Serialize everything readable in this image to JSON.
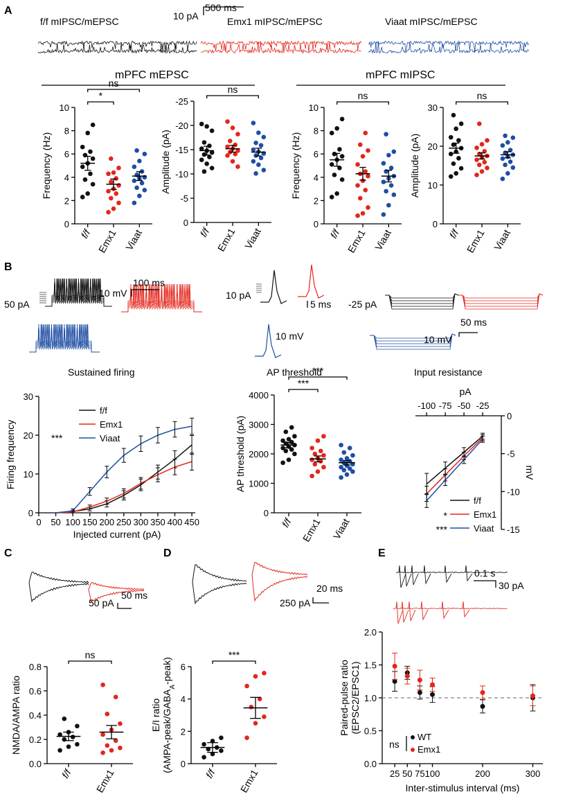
{
  "colors": {
    "ff": "#111111",
    "emx1": "#e3261c",
    "viaat": "#1f4ea3",
    "axis": "#000000"
  },
  "panel_letters": [
    "A",
    "B",
    "C",
    "D",
    "E"
  ],
  "panelA": {
    "trace_labels": [
      "f/f mIPSC/mEPSC",
      "Emx1 mIPSC/mEPSC",
      "Viaat mIPSC/mEPSC"
    ],
    "scale_x": "500 ms",
    "scale_y": "10 pA",
    "group_headers": [
      "mPFC mEPSC",
      "mPFC mIPSC"
    ]
  },
  "panelB": {
    "scale_firing_y": "10 mV",
    "scale_firing_x": "100 ms",
    "stim_firing": "50 pA",
    "scale_ap_y": "10 pA",
    "scale_ap_x": "5 ms",
    "scale_ap_mv": "10 mV",
    "stim_ir": "-25 pA",
    "scale_ir_y": "10 mV",
    "scale_ir_x": "50 ms",
    "titles": [
      "Sustained firing",
      "AP threshold",
      "Input resistance"
    ]
  },
  "panelC": {
    "scale_y": "50 pA",
    "scale_x": "50 ms"
  },
  "panelD": {
    "scale_y": "250 pA",
    "scale_x": "20 ms"
  },
  "panelE": {
    "scale_x": "0.1 s",
    "scale_y": "30 pA"
  },
  "chart_data": [
    {
      "id": "mepsc_freq",
      "type": "scatter",
      "ylabel": "Frequency (Hz)",
      "ylim": [
        0,
        10
      ],
      "yticks": [
        0,
        2,
        4,
        6,
        8,
        10
      ],
      "categories": [
        "f/f",
        "Emx1",
        "Viaat"
      ],
      "groups": [
        {
          "name": "f/f",
          "color": "#111111",
          "mean": 5.2,
          "sem": 0.6,
          "points": [
            8.5,
            7.8,
            6.6,
            6.2,
            5.9,
            5.6,
            5.2,
            4.9,
            4.3,
            3.8,
            3.4,
            2.6,
            2.3
          ]
        },
        {
          "name": "Emx1",
          "color": "#e3261c",
          "mean": 3.4,
          "sem": 0.45,
          "points": [
            5.6,
            4.8,
            4.4,
            4.3,
            3.9,
            3.6,
            3.3,
            3.0,
            2.8,
            2.6,
            2.2,
            1.8,
            1.3,
            1.0
          ]
        },
        {
          "name": "Viaat",
          "color": "#1f4ea3",
          "mean": 4.1,
          "sem": 0.38,
          "points": [
            6.3,
            6.0,
            5.4,
            4.9,
            4.5,
            4.2,
            4.0,
            3.9,
            3.7,
            3.5,
            3.1,
            2.9,
            2.4,
            1.8
          ]
        }
      ],
      "sig": [
        {
          "from": 0,
          "to": 1,
          "label": "*"
        },
        {
          "from": 0,
          "to": 2,
          "label": "ns"
        }
      ]
    },
    {
      "id": "mepsc_amp",
      "type": "scatter",
      "ylabel": "Amplitude (pA)",
      "ylim": [
        0,
        -25
      ],
      "yticks": [
        0,
        -5,
        -10,
        -15,
        -20,
        -25
      ],
      "categories": [
        "f/f",
        "Emx1",
        "Viaat"
      ],
      "groups": [
        {
          "name": "f/f",
          "color": "#111111",
          "mean": -14.8,
          "sem": 0.9,
          "points": [
            -20.3,
            -19.8,
            -18.9,
            -16.5,
            -15.8,
            -15.2,
            -14.8,
            -14.4,
            -14.0,
            -13.5,
            -12.9,
            -12.1,
            -11.2,
            -10.5
          ]
        },
        {
          "name": "Emx1",
          "color": "#e3261c",
          "mean": -15.2,
          "sem": 0.7,
          "points": [
            -20.8,
            -19.5,
            -18.2,
            -16.8,
            -16.0,
            -15.6,
            -15.2,
            -14.8,
            -14.5,
            -14.1,
            -13.8,
            -12.6,
            -11.5
          ]
        },
        {
          "name": "Viaat",
          "color": "#1f4ea3",
          "mean": -14.5,
          "sem": 0.8,
          "points": [
            -20.5,
            -18.5,
            -17.6,
            -16.4,
            -15.9,
            -15.0,
            -14.6,
            -14.2,
            -13.8,
            -13.3,
            -12.6,
            -11.9,
            -10.8,
            -10.1
          ]
        }
      ],
      "sig": [
        {
          "from": 0,
          "to": 2,
          "label": "ns"
        }
      ]
    },
    {
      "id": "mipsc_freq",
      "type": "scatter",
      "ylabel": "Frequency (Hz)",
      "ylim": [
        0,
        10
      ],
      "yticks": [
        0,
        2,
        4,
        6,
        8,
        10
      ],
      "categories": [
        "f/f",
        "Emx1",
        "Viaat"
      ],
      "groups": [
        {
          "name": "f/f",
          "color": "#111111",
          "mean": 5.5,
          "sem": 0.55,
          "points": [
            9.0,
            8.2,
            7.8,
            6.4,
            6.0,
            5.8,
            5.5,
            5.1,
            4.8,
            4.2,
            3.8,
            2.6,
            2.3
          ]
        },
        {
          "name": "Emx1",
          "color": "#e3261c",
          "mean": 4.3,
          "sem": 0.55,
          "points": [
            7.8,
            6.8,
            6.3,
            5.8,
            5.1,
            4.5,
            4.3,
            4.1,
            3.7,
            3.3,
            2.9,
            2.2,
            1.4,
            0.9,
            0.7
          ]
        },
        {
          "name": "Viaat",
          "color": "#1f4ea3",
          "mean": 4.1,
          "sem": 0.5,
          "points": [
            7.7,
            6.2,
            5.9,
            5.2,
            4.8,
            4.5,
            4.1,
            3.9,
            3.6,
            3.3,
            2.8,
            2.5,
            1.6,
            0.8
          ]
        }
      ],
      "sig": [
        {
          "from": 0,
          "to": 2,
          "label": "ns"
        }
      ]
    },
    {
      "id": "mipsc_amp",
      "type": "scatter",
      "ylabel": "Amplitude (pA)",
      "ylim": [
        0,
        30
      ],
      "yticks": [
        0,
        10,
        20,
        30
      ],
      "categories": [
        "f/f",
        "Emx1",
        "Viaat"
      ],
      "groups": [
        {
          "name": "f/f",
          "color": "#111111",
          "mean": 19.5,
          "sem": 1.3,
          "points": [
            28.0,
            25.8,
            24.5,
            22.3,
            21.5,
            20.4,
            19.5,
            18.6,
            18.0,
            16.9,
            15.5,
            14.3,
            13.0,
            12.2
          ]
        },
        {
          "name": "Emx1",
          "color": "#e3261c",
          "mean": 17.5,
          "sem": 0.8,
          "points": [
            25.8,
            21.5,
            20.5,
            19.6,
            18.7,
            18.0,
            17.5,
            17.1,
            16.5,
            15.9,
            15.2,
            14.4,
            13.5,
            12.6
          ]
        },
        {
          "name": "Viaat",
          "color": "#1f4ea3",
          "mean": 17.8,
          "sem": 0.8,
          "points": [
            22.7,
            22.2,
            21.0,
            20.2,
            19.0,
            18.3,
            17.8,
            17.3,
            16.8,
            16.0,
            15.2,
            14.5,
            13.0,
            11.6
          ]
        }
      ],
      "sig": [
        {
          "from": 0,
          "to": 2,
          "label": "ns"
        }
      ]
    },
    {
      "id": "sustained_firing",
      "type": "line",
      "xlabel": "Injected current (pA)",
      "ylabel": "Firing frequency",
      "xlim": [
        0,
        460
      ],
      "ylim": [
        0,
        30
      ],
      "xticks": [
        0,
        50,
        100,
        150,
        200,
        250,
        300,
        350,
        400,
        450
      ],
      "yticks": [
        0,
        10,
        20,
        30
      ],
      "annotation": "***",
      "series": [
        {
          "name": "f/f",
          "color": "#111111",
          "x": [
            100,
            150,
            200,
            250,
            300,
            350,
            400,
            450
          ],
          "y": [
            0.3,
            1.0,
            2.3,
            4.5,
            7.2,
            10.5,
            13.8,
            17.5
          ],
          "err": [
            0.3,
            0.5,
            0.8,
            1.2,
            1.5,
            1.8,
            2.2,
            2.4
          ]
        },
        {
          "name": "Emx1",
          "color": "#e3261c",
          "x": [
            100,
            150,
            200,
            250,
            300,
            350,
            400,
            450
          ],
          "y": [
            0.2,
            1.5,
            3.0,
            5.0,
            7.6,
            9.8,
            11.8,
            13.2
          ],
          "err": [
            0.2,
            0.5,
            0.8,
            1.2,
            1.5,
            1.8,
            2.0,
            2.2
          ]
        },
        {
          "name": "Viaat",
          "color": "#1f4ea3",
          "x": [
            100,
            150,
            200,
            250,
            300,
            350,
            400,
            450
          ],
          "y": [
            0.5,
            5.5,
            10.5,
            14.8,
            17.8,
            20.0,
            21.5,
            22.3
          ],
          "err": [
            0.5,
            1.0,
            1.5,
            1.8,
            2.0,
            2.0,
            2.0,
            2.1
          ]
        }
      ]
    },
    {
      "id": "ap_threshold",
      "type": "scatter",
      "ylabel": "AP threshold (pA)",
      "ylim": [
        0,
        4000
      ],
      "yticks": [
        0,
        1000,
        2000,
        3000,
        4000
      ],
      "categories": [
        "f/f",
        "Emx1",
        "Viaat"
      ],
      "groups": [
        {
          "name": "f/f",
          "color": "#111111",
          "mean": 2300,
          "sem": 90,
          "points": [
            2900,
            2750,
            2600,
            2500,
            2450,
            2400,
            2350,
            2300,
            2250,
            2200,
            2150,
            2100,
            2000,
            1800,
            1700
          ]
        },
        {
          "name": "Emx1",
          "color": "#e3261c",
          "mean": 1830,
          "sem": 100,
          "points": [
            2600,
            2450,
            2200,
            2100,
            2000,
            1950,
            1850,
            1800,
            1750,
            1650,
            1550,
            1400,
            1250
          ]
        },
        {
          "name": "Viaat",
          "color": "#1f4ea3",
          "mean": 1700,
          "sem": 75,
          "points": [
            2300,
            2200,
            2050,
            1950,
            1850,
            1800,
            1750,
            1700,
            1650,
            1600,
            1550,
            1500,
            1450,
            1400,
            1300,
            1200
          ]
        }
      ],
      "sig": [
        {
          "from": 0,
          "to": 1,
          "label": "***"
        },
        {
          "from": 0,
          "to": 2,
          "label": "***"
        }
      ]
    },
    {
      "id": "input_resistance",
      "type": "line",
      "xlabel": "pA",
      "ylabel": "mV",
      "xlim": [
        -115,
        0
      ],
      "ylim": [
        -15,
        0
      ],
      "xticks": [
        -100,
        -75,
        -50,
        -25
      ],
      "yticks": [
        0,
        -5,
        -10,
        -15
      ],
      "legend_annotations": [
        "",
        "*",
        "***"
      ],
      "series": [
        {
          "name": "f/f",
          "color": "#111111",
          "x": [
            -100,
            -75,
            -50,
            -25
          ],
          "y": [
            -9.0,
            -6.9,
            -4.8,
            -2.7
          ],
          "err": [
            1.4,
            0.8,
            0.6,
            0.4
          ]
        },
        {
          "name": "Emx1",
          "color": "#e3261c",
          "x": [
            -100,
            -75,
            -50,
            -25
          ],
          "y": [
            -10.3,
            -7.8,
            -5.3,
            -2.9
          ],
          "err": [
            1.0,
            0.8,
            0.5,
            0.4
          ]
        },
        {
          "name": "Viaat",
          "color": "#1f4ea3",
          "x": [
            -100,
            -75,
            -50,
            -25
          ],
          "y": [
            -11.2,
            -8.5,
            -5.8,
            -3.1
          ],
          "err": [
            0.9,
            0.7,
            0.5,
            0.4
          ]
        }
      ]
    },
    {
      "id": "nmda_ampa",
      "type": "scatter",
      "ylabel": "NMDA/AMPA ratio",
      "ylim": [
        0,
        0.8
      ],
      "yticks": [
        0.0,
        0.2,
        0.4,
        0.6,
        0.8
      ],
      "categories": [
        "f/f",
        "Emx1"
      ],
      "groups": [
        {
          "name": "f/f",
          "color": "#111111",
          "mean": 0.225,
          "sem": 0.035,
          "points": [
            0.37,
            0.31,
            0.26,
            0.24,
            0.22,
            0.2,
            0.16,
            0.14,
            0.11
          ]
        },
        {
          "name": "Emx1",
          "color": "#e3261c",
          "mean": 0.26,
          "sem": 0.055,
          "points": [
            0.65,
            0.55,
            0.41,
            0.33,
            0.28,
            0.24,
            0.19,
            0.15,
            0.13,
            0.11,
            0.09
          ]
        }
      ],
      "sig": [
        {
          "from": 0,
          "to": 1,
          "label": "ns"
        }
      ]
    },
    {
      "id": "ei_ratio",
      "type": "scatter",
      "ylabel": "E/I ratio",
      "ylabel2": "(AMPA-peak/GABA",
      "ylabel_sub": "A",
      "ylabel3": "-peak)",
      "ylim": [
        0,
        6
      ],
      "yticks": [
        0,
        2,
        4,
        6
      ],
      "categories": [
        "f/f",
        "Emx1"
      ],
      "groups": [
        {
          "name": "f/f",
          "color": "#111111",
          "mean": 1.0,
          "sem": 0.3,
          "points": [
            1.6,
            1.4,
            1.2,
            1.0,
            0.9,
            0.8,
            0.6,
            0.4
          ]
        },
        {
          "name": "Emx1",
          "color": "#e3261c",
          "mean": 3.45,
          "sem": 0.65,
          "points": [
            5.6,
            5.4,
            4.8,
            4.0,
            3.5,
            2.9,
            2.5,
            1.6
          ]
        }
      ],
      "sig": [
        {
          "from": 0,
          "to": 1,
          "label": "***"
        }
      ]
    },
    {
      "id": "paired_pulse",
      "type": "scatter",
      "xlabel": "Inter-stimulus interval (ms)",
      "ylabel": "Paired-pulse ratio",
      "ylabel2": "(EPSC2/EPSC1)",
      "xlim": [
        0,
        320
      ],
      "ylim": [
        0,
        2
      ],
      "xticks": [
        25,
        50,
        75,
        100,
        200,
        300
      ],
      "yticks": [
        0.0,
        0.5,
        1.0,
        1.5,
        2.0
      ],
      "reference_line": 1.0,
      "legend_ns": "ns",
      "series": [
        {
          "name": "WT",
          "color": "#111111",
          "x": [
            25,
            50,
            75,
            100,
            200,
            300
          ],
          "y": [
            1.25,
            1.38,
            1.08,
            1.05,
            0.87,
            1.0
          ],
          "err": [
            0.15,
            0.1,
            0.1,
            0.12,
            0.1,
            0.2
          ]
        },
        {
          "name": "Emx1",
          "color": "#e3261c",
          "x": [
            25,
            50,
            75,
            100,
            200,
            300
          ],
          "y": [
            1.48,
            1.33,
            1.27,
            1.2,
            1.08,
            1.03
          ],
          "err": [
            0.2,
            0.12,
            0.15,
            0.1,
            0.1,
            0.15
          ]
        }
      ]
    }
  ]
}
